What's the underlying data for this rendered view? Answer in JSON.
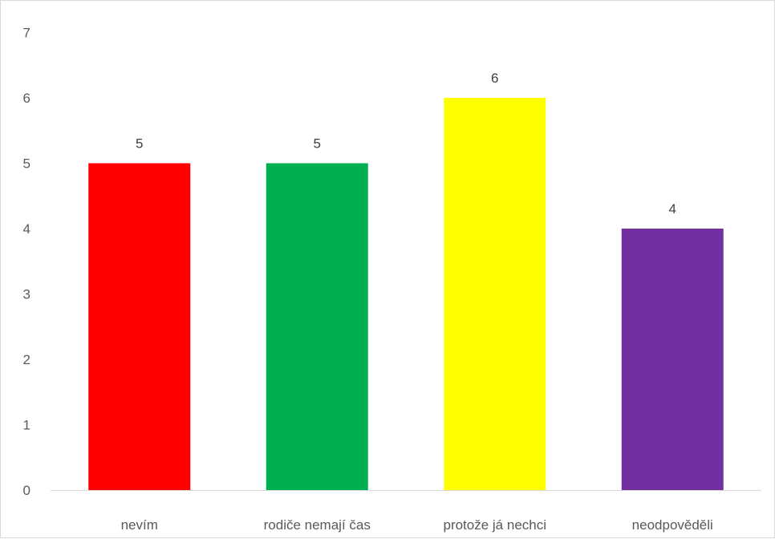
{
  "chart_data": {
    "type": "bar",
    "categories": [
      "nevím",
      "rodiče nemají čas",
      "protože já nechci",
      "neodpověděli"
    ],
    "values": [
      5,
      5,
      6,
      4
    ],
    "colors": [
      "#ff0000",
      "#00b050",
      "#ffff00",
      "#7030a0"
    ],
    "data_labels": [
      "5",
      "5",
      "6",
      "4"
    ],
    "y_ticks": [
      "0",
      "1",
      "2",
      "3",
      "4",
      "5",
      "6",
      "7"
    ],
    "title": "",
    "xlabel": "",
    "ylabel": "",
    "ylim": [
      0,
      7
    ],
    "grid": false,
    "legend": "none"
  }
}
